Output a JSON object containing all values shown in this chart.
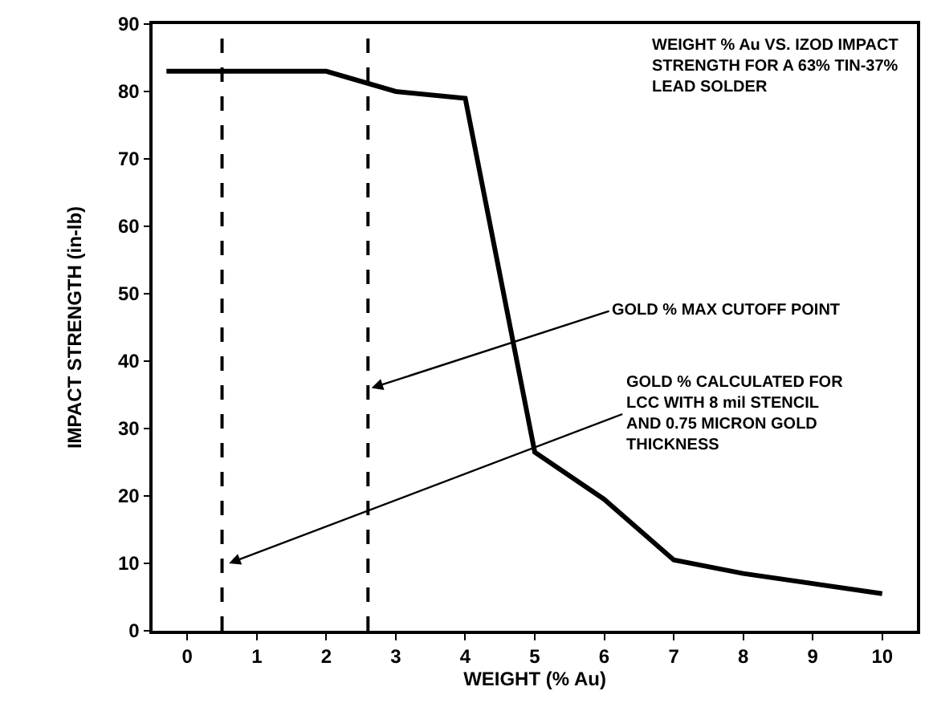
{
  "chart_data": {
    "type": "line",
    "xlabel": "WEIGHT (% Au)",
    "ylabel": "IMPACT STRENGTH (in-lb)",
    "x": [
      -0.3,
      2,
      3,
      4,
      5,
      6,
      7,
      8,
      10
    ],
    "series": [
      {
        "color": "#000000",
        "values": [
          83,
          83,
          80,
          79,
          26.5,
          19.5,
          10.5,
          8.5,
          5.5
        ]
      }
    ],
    "xlim": [
      -0.5,
      10.5
    ],
    "xticks": [
      0,
      1,
      2,
      3,
      4,
      5,
      6,
      7,
      8,
      9,
      10
    ],
    "ylim": [
      0,
      90
    ],
    "yticks": [
      0,
      10,
      20,
      30,
      40,
      50,
      60,
      70,
      80,
      90
    ],
    "marker": "none",
    "line_style": "solid",
    "ref_lines": [
      {
        "axis": "x",
        "value": 0.5,
        "color": "#000000",
        "line_style": "dashed"
      },
      {
        "axis": "x",
        "value": 2.6,
        "color": "#000000",
        "line_style": "dashed"
      }
    ],
    "annotations": [
      "WEIGHT % Au VS. IZOD IMPACT\nSTRENGTH FOR A 63% TIN-37%\nLEAD SOLDER",
      {
        "text": "GOLD % MAX CUTOFF POINT",
        "x": 2.65,
        "y": 36
      },
      {
        "text": "GOLD % CALCULATED FOR\nLCC WITH 8 mil STENCIL\nAND 0.75 MICRON GOLD\nTHICKNESS",
        "x": 0.6,
        "y": 10
      }
    ]
  }
}
